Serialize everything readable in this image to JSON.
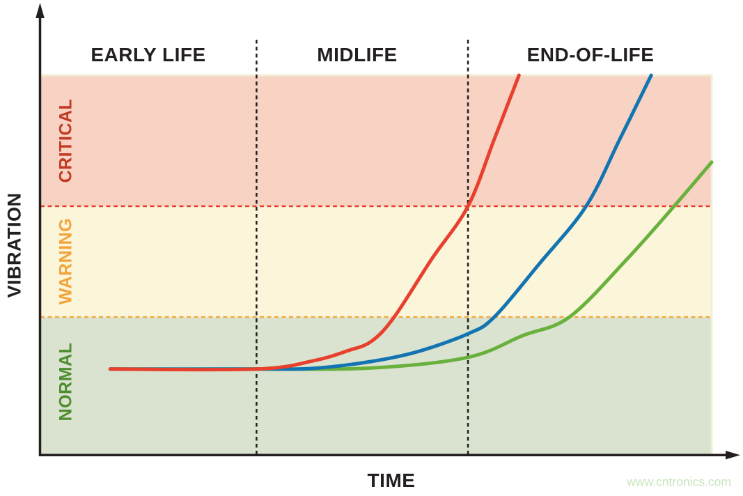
{
  "watermark": {
    "text": "www.cntronics.com",
    "color": "#c9e5bd"
  },
  "chart_data": {
    "type": "line",
    "title": "Machine vibration level over lifetime (qualitative, no numeric ticks shown)",
    "xlabel": "TIME",
    "ylabel": "VIBRATION",
    "x_range": [
      0,
      100
    ],
    "y_range": [
      0,
      100
    ],
    "units_note": "axes unlabeled numerically; point values are percent of axis span estimated from pixels",
    "grid": false,
    "legend": "none",
    "axis_color": "#231f20",
    "stage_divider_color": "#231f20",
    "zone_border_color": "#f2eed6",
    "flat_baseline_v": 22.6,
    "stages": [
      {
        "label": "EARLY LIFE",
        "x_start": 0,
        "x_end": 32.2
      },
      {
        "label": "MIDLIFE",
        "x_start": 32.2,
        "x_end": 63.7
      },
      {
        "label": "END-OF-LIFE",
        "x_start": 63.7,
        "x_end": 100
      }
    ],
    "zones": [
      {
        "label": "NORMAL",
        "v_min": 0,
        "v_max": 36.3,
        "fill": "#d9e3d0",
        "label_color": "#4e8d2f"
      },
      {
        "label": "WARNING",
        "v_min": 36.3,
        "v_max": 65.5,
        "fill": "#fbf5da",
        "label_color": "#f2a43b"
      },
      {
        "label": "CRITICAL",
        "v_min": 65.5,
        "v_max": 100,
        "fill": "#f8d3c3",
        "label_color": "#c23a26"
      }
    ],
    "thresholds": [
      {
        "name": "warning-threshold",
        "v": 36.3,
        "color": "#f4a93e"
      },
      {
        "name": "critical-threshold",
        "v": 65.5,
        "color": "#e8402c"
      }
    ],
    "series": [
      {
        "name": "slow-degradation",
        "color": "#69b13c",
        "points": [
          [
            10.4,
            22.6
          ],
          [
            32.2,
            22.6
          ],
          [
            49.3,
            22.9
          ],
          [
            63.7,
            25.7
          ],
          [
            71.8,
            31.4
          ],
          [
            78.8,
            36.3
          ],
          [
            87.3,
            51.4
          ],
          [
            94.4,
            65.5
          ],
          [
            100,
            77.1
          ]
        ]
      },
      {
        "name": "moderate-degradation",
        "color": "#1274b0",
        "points": [
          [
            10.4,
            22.6
          ],
          [
            32.2,
            22.6
          ],
          [
            40.7,
            22.8
          ],
          [
            49.3,
            24.6
          ],
          [
            56.2,
            27.2
          ],
          [
            63.7,
            31.9
          ],
          [
            67.6,
            36.3
          ],
          [
            74.4,
            50.5
          ],
          [
            81.3,
            65.5
          ],
          [
            86.3,
            83.1
          ],
          [
            91.0,
            100
          ]
        ]
      },
      {
        "name": "rapid-degradation",
        "color": "#e8402c",
        "points": [
          [
            10.4,
            22.6
          ],
          [
            32.2,
            22.6
          ],
          [
            40.7,
            24.8
          ],
          [
            45.9,
            27.5
          ],
          [
            49.3,
            29.9
          ],
          [
            52.7,
            36.3
          ],
          [
            58.3,
            51.6
          ],
          [
            63.7,
            65.5
          ],
          [
            67.6,
            83.1
          ],
          [
            71.3,
            100
          ]
        ]
      }
    ]
  }
}
